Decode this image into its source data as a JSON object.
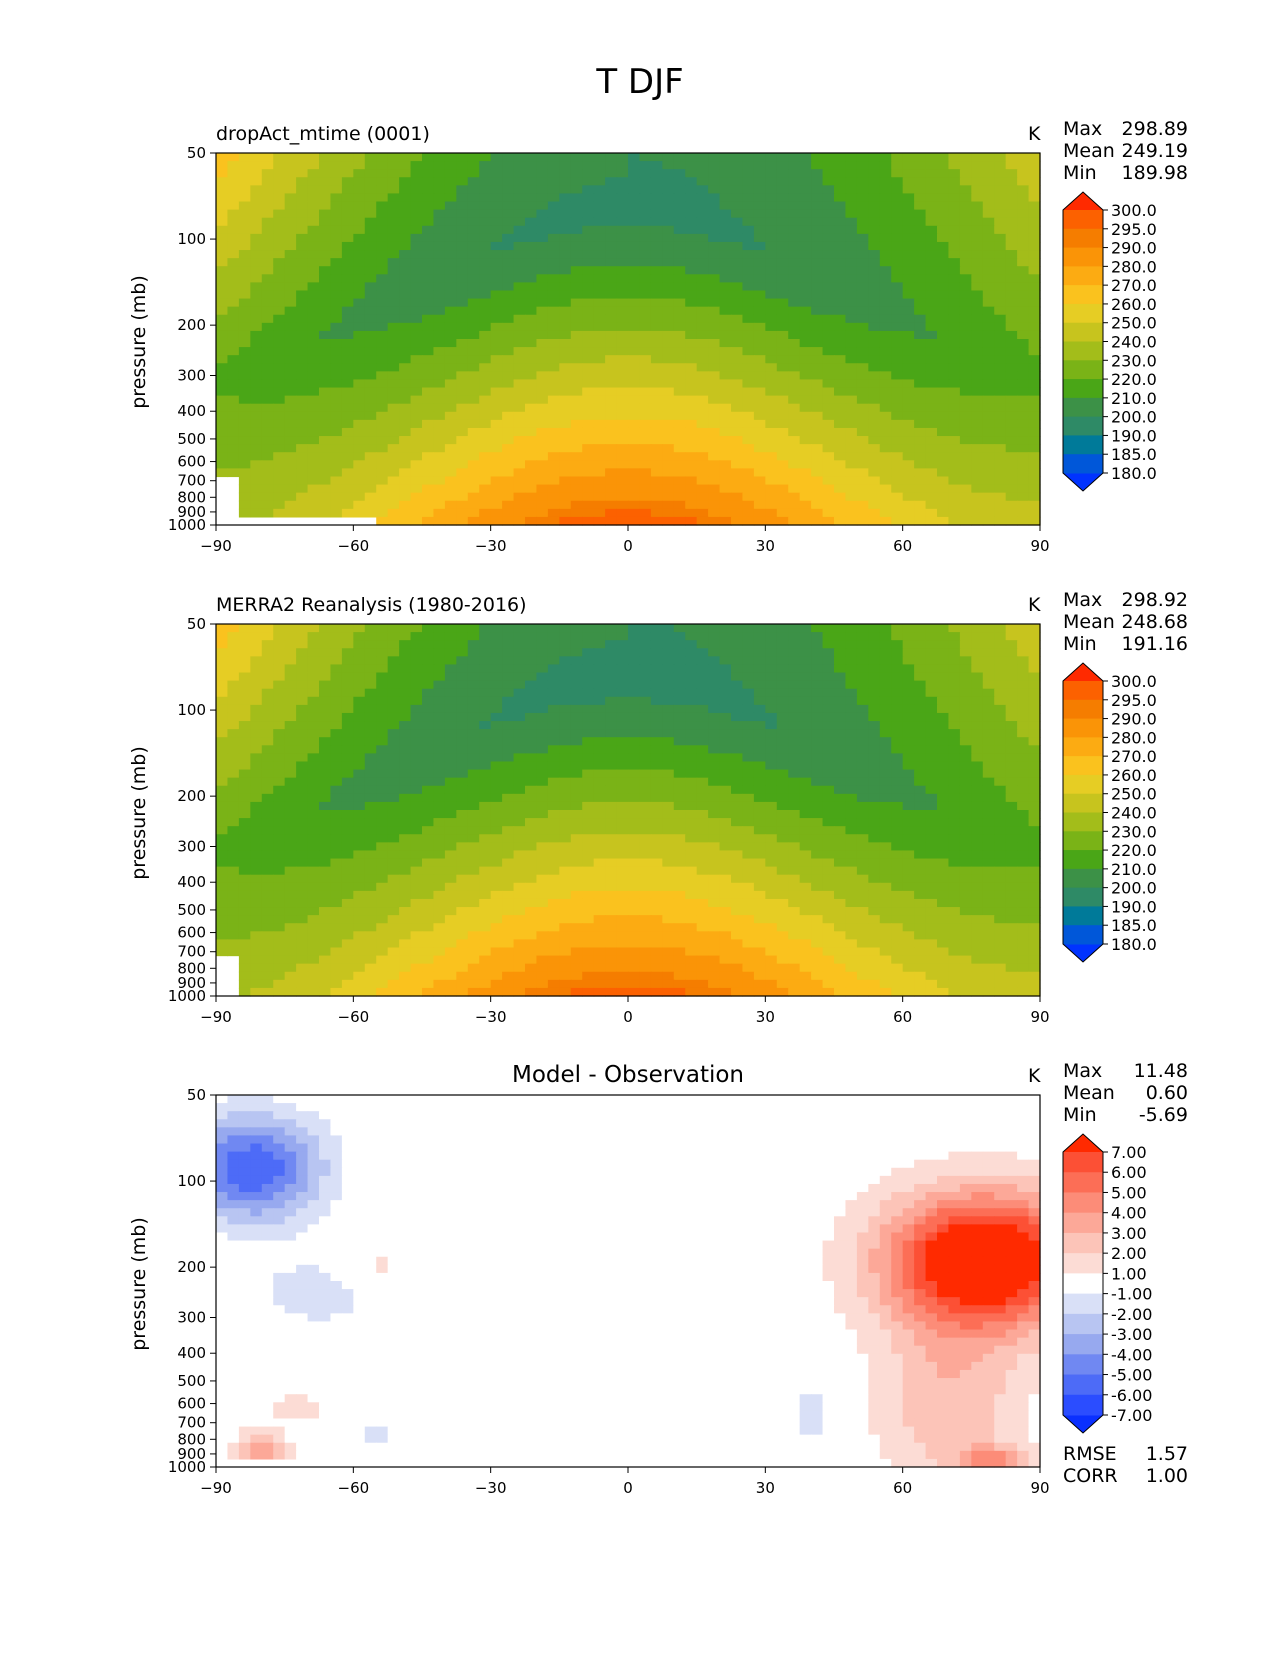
{
  "figure": {
    "title": "T DJF",
    "xticks": [
      "−90",
      "−60",
      "−30",
      "0",
      "30",
      "60",
      "90"
    ],
    "yticks": [
      "50",
      "100",
      "200",
      "300",
      "400",
      "500",
      "600",
      "700",
      "800",
      "900",
      "1000"
    ],
    "yvalues": [
      50,
      100,
      200,
      300,
      400,
      500,
      600,
      700,
      800,
      900,
      1000
    ]
  },
  "colors": {
    "temp": [
      "#0033ff",
      "#0057d9",
      "#007a99",
      "#2e8a66",
      "#3c9147",
      "#4aa617",
      "#7ab317",
      "#a3bd1a",
      "#c7c41e",
      "#e6cd24",
      "#fac21e",
      "#fcab12",
      "#fa9407",
      "#f57d00",
      "#fc6100",
      "#ff2a00"
    ],
    "diff": [
      "#0a30ff",
      "#2b4dff",
      "#4d6bf7",
      "#7088f2",
      "#97a9ef",
      "#b8c5f2",
      "#d9e0f7",
      "#ffffff",
      "#fcdcd5",
      "#fcc4b8",
      "#fca898",
      "#fc8c78",
      "#fc6e56",
      "#fc5035",
      "#ff2a00"
    ]
  },
  "chart_data": [
    {
      "type": "contourf",
      "title": "dropAct_mtime (0001)",
      "units": "K",
      "xlabel": "",
      "ylabel": "pressure (mb)",
      "xlim": [
        -90,
        90
      ],
      "ylim": [
        1000,
        50
      ],
      "stats": [
        {
          "label": "Max",
          "value": "298.89"
        },
        {
          "label": "Mean",
          "value": "249.19"
        },
        {
          "label": "Min",
          "value": "189.98"
        }
      ],
      "colorbar_levels": [
        "300.0",
        "295.0",
        "290.0",
        "280.0",
        "270.0",
        "260.0",
        "250.0",
        "240.0",
        "230.0",
        "220.0",
        "210.0",
        "200.0",
        "190.0",
        "185.0",
        "180.0"
      ]
    },
    {
      "type": "contourf",
      "title": "MERRA2 Reanalysis (1980-2016)",
      "units": "K",
      "xlabel": "",
      "ylabel": "pressure (mb)",
      "xlim": [
        -90,
        90
      ],
      "ylim": [
        1000,
        50
      ],
      "stats": [
        {
          "label": "Max",
          "value": "298.92"
        },
        {
          "label": "Mean",
          "value": "248.68"
        },
        {
          "label": "Min",
          "value": "191.16"
        }
      ],
      "colorbar_levels": [
        "300.0",
        "295.0",
        "290.0",
        "280.0",
        "270.0",
        "260.0",
        "250.0",
        "240.0",
        "230.0",
        "220.0",
        "210.0",
        "200.0",
        "190.0",
        "185.0",
        "180.0"
      ]
    },
    {
      "type": "contourf",
      "title": "Model - Observation",
      "units": "K",
      "xlabel": "",
      "ylabel": "pressure (mb)",
      "xlim": [
        -90,
        90
      ],
      "ylim": [
        1000,
        50
      ],
      "stats": [
        {
          "label": "Max",
          "value": "11.48"
        },
        {
          "label": "Mean",
          "value": "0.60"
        },
        {
          "label": "Min",
          "value": "-5.69"
        }
      ],
      "colorbar_levels": [
        "7.00",
        "6.00",
        "5.00",
        "4.00",
        "3.00",
        "2.00",
        "1.00",
        "-1.00",
        "-2.00",
        "-3.00",
        "-4.00",
        "-5.00",
        "-6.00",
        "-7.00"
      ],
      "metrics": [
        {
          "label": "RMSE",
          "value": "1.57"
        },
        {
          "label": "CORR",
          "value": "1.00"
        }
      ]
    }
  ]
}
